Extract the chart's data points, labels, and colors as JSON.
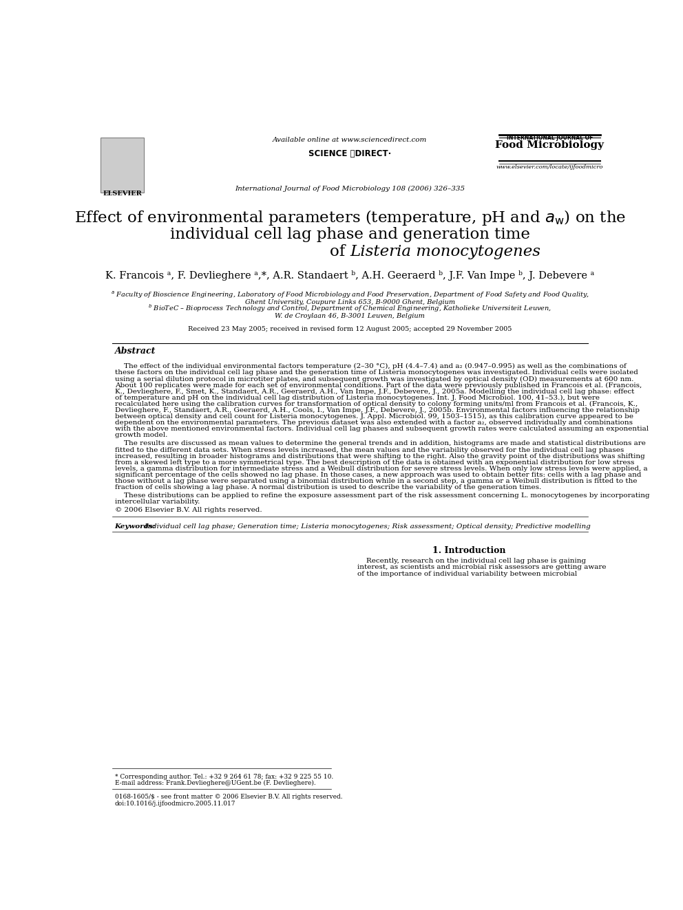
{
  "bg_color": "#ffffff",
  "available_online": "Available online at www.sciencedirect.com",
  "sciencedirect_label": "SCIENCE ⓓDIRECT·",
  "journal_name_small": "INTERNATIONAL JOURNAL OF",
  "journal_name_large": "Food Microbiology",
  "journal_citation": "International Journal of Food Microbiology 108 (2006) 326–335",
  "website": "www.elsevier.com/locate/ijfoodmicro",
  "elsevier_label": "ELSEVIER",
  "title_line1": "Effect of environmental parameters (temperature, pH and $a_\\mathrm{w}$) on the",
  "title_line2": "individual cell lag phase and generation time",
  "title_line3_plain": "of ",
  "title_line3_italic": "Listeria monocytogenes",
  "authors": "K. Francois $^{a}$, F. Devlieghere $^{a,*}$, A.R. Standaert $^{b}$, A.H. Geeraerd $^{b}$, J.F. Van Impe $^{b}$, J. Debevere $^{a}$",
  "affil_a1": "$^{a}$ Faculty of Bioscience Engineering, Laboratory of Food Microbiology and Food Preservation, Department of Food Safety and Food Quality,",
  "affil_a2": "Ghent University, Coupure Links 653, B-9000 Ghent, Belgium",
  "affil_b1": "$^{b}$ BioTeC – Bioprocess Technology and Control, Department of Chemical Engineering, Katholieke Universiteit Leuven,",
  "affil_b2": "W. de Croylaan 46, B-3001 Leuven, Belgium",
  "received": "Received 23 May 2005; received in revised form 12 August 2005; accepted 29 November 2005",
  "abstract_title": "Abstract",
  "abstract_p1_line1": "    The effect of the individual environmental factors temperature (2–30 °C), pH (4.4–7.4) and a₂ (0.947–0.995) as well as the combinations of",
  "abstract_p1_line2": "these factors on the individual cell lag phase and the generation time of Listeria monocytogenes was investigated. Individual cells were isolated",
  "abstract_p1_line3": "using a serial dilution protocol in microtiter plates, and subsequent growth was investigated by optical density (OD) measurements at 600 nm.",
  "abstract_p1_line4": "About 100 replicates were made for each set of environmental conditions. Part of the data were previously published in Francois et al. (Francois,",
  "abstract_p1_line5": "K., Devlieghere, F., Smet, K., Standaert, A.R., Geeraerd, A.H., Van Impe, J.F., Debevere, J., 2005a. Modelling the individual cell lag phase: effect",
  "abstract_p1_line6": "of temperature and pH on the individual cell lag distribution of Listeria monocytogenes. Int. J. Food Microbiol. 100, 41–53.), but were",
  "abstract_p1_line7": "recalculated here using the calibration curves for transformation of optical density to colony forming units/ml from Francois et al. (Francois, K.,",
  "abstract_p1_line8": "Devlieghere, F., Standaert, A.R., Geeraerd, A.H., Cools, I., Van Impe, J.F., Debevere, J., 2005b. Environmental factors influencing the relationship",
  "abstract_p1_line9": "between optical density and cell count for Listeria monocytogenes. J. Appl. Microbiol. 99, 1503–1515), as this calibration curve appeared to be",
  "abstract_p1_line10": "dependent on the environmental parameters. The previous dataset was also extended with a factor a₂, observed individually and combinations",
  "abstract_p1_line11": "with the above mentioned environmental factors. Individual cell lag phases and subsequent growth rates were calculated assuming an exponential",
  "abstract_p1_line12": "growth model.",
  "abstract_p2_line1": "    The results are discussed as mean values to determine the general trends and in addition, histograms are made and statistical distributions are",
  "abstract_p2_line2": "fitted to the different data sets. When stress levels increased, the mean values and the variability observed for the individual cell lag phases",
  "abstract_p2_line3": "increased, resulting in broader histograms and distributions that were shifting to the right. Also the gravity point of the distributions was shifting",
  "abstract_p2_line4": "from a skewed left type to a more symmetrical type. The best description of the data is obtained with an exponential distribution for low stress",
  "abstract_p2_line5": "levels, a gamma distribution for intermediate stress and a Weibull distribution for severe stress levels. When only low stress levels were applied, a",
  "abstract_p2_line6": "significant percentage of the cells showed no lag phase. In those cases, a new approach was used to obtain better fits: cells with a lag phase and",
  "abstract_p2_line7": "those without a lag phase were separated using a binomial distribution while in a second step, a gamma or a Weibull distribution is fitted to the",
  "abstract_p2_line8": "fraction of cells showing a lag phase. A normal distribution is used to describe the variability of the generation times.",
  "abstract_p3_line1": "    These distributions can be applied to refine the exposure assessment part of the risk assessment concerning L. monocytogenes by incorporating",
  "abstract_p3_line2": "intercellular variability.",
  "copyright": "© 2006 Elsevier B.V. All rights reserved.",
  "keywords_label": "Keywords:",
  "keywords_text": " Individual cell lag phase; Generation time; Listeria monocytogenes; Risk assessment; Optical density; Predictive modelling",
  "section1_title": "1. Introduction",
  "intro_p1_line1": "    Recently, research on the individual cell lag phase is gaining",
  "intro_p1_line2": "interest, as scientists and microbial risk assessors are getting aware",
  "intro_p1_line3": "of the importance of individual variability between microbial",
  "footer_star": "* Corresponding author. Tel.: +32 9 264 61 78; fax: +32 9 225 55 10.",
  "footer_email": "E-mail address: Frank.Devlieghere@UGent.be (F. Devlieghere).",
  "footer_issn": "0168-1605/$ - see front matter © 2006 Elsevier B.V. All rights reserved.",
  "footer_doi": "doi:10.1016/j.ijfoodmicro.2005.11.017"
}
